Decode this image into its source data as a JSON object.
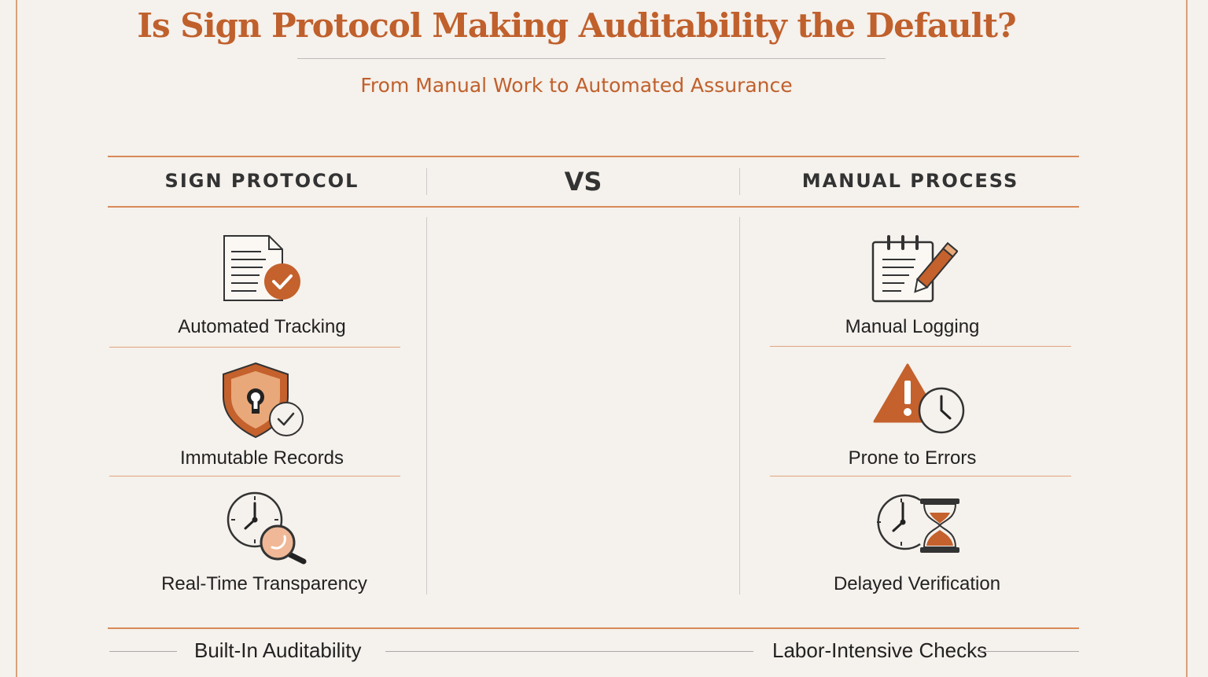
{
  "title": "Is Sign Protocol Making Auditability the Default?",
  "subtitle": "From Manual Work to Automated Assurance",
  "colors": {
    "accent": "#c0602c",
    "background": "#f5f1ec",
    "rule": "#d88a58",
    "ink": "#222222"
  },
  "left": {
    "header": "SIGN PROTOCOL",
    "items": [
      {
        "label": "Automated Tracking",
        "icon": "document-check-icon"
      },
      {
        "label": "Immutable Records",
        "icon": "shield-lock-icon"
      },
      {
        "label": "Real-Time Transparency",
        "icon": "clock-magnifier-icon"
      }
    ],
    "footer": "Built-In Auditability"
  },
  "center": {
    "header": "VS"
  },
  "right": {
    "header": "MANUAL PROCESS",
    "items": [
      {
        "label": "Manual Logging",
        "icon": "notepad-pencil-icon"
      },
      {
        "label": "Prone to Errors",
        "icon": "warning-clock-icon"
      },
      {
        "label": "Delayed Verification",
        "icon": "clock-hourglass-icon"
      }
    ],
    "footer": "Labor-Intensive Checks"
  }
}
